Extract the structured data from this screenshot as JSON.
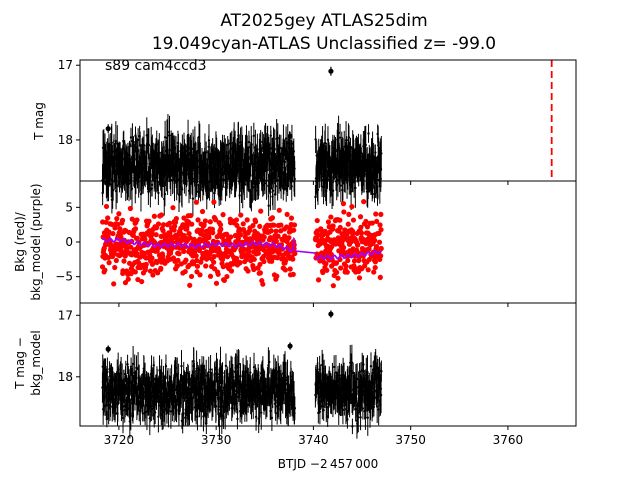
{
  "title": {
    "line1": "AT2025gey  ATLAS25dim",
    "line2": "19.049cyan-ATLAS Unclassified z= -99.0"
  },
  "chart_data": [
    {
      "type": "scatter",
      "panel": "top",
      "ylabel": "T mag",
      "annotation": "s89 cam4ccd3",
      "ylim": [
        18.55,
        16.93
      ],
      "yticks": [
        17,
        18
      ],
      "y_inverted": true,
      "errorbars": true,
      "series": [
        {
          "color": "#000000",
          "segments": [
            [
              3718.3,
              3738.1
            ],
            [
              3740.2,
              3747.0
            ]
          ],
          "center": 18.35,
          "spread": 0.18,
          "outliers": [
            [
              3741.8,
              17.08
            ],
            [
              3737.6,
              17.95
            ],
            [
              3718.9,
              17.85
            ]
          ]
        }
      ],
      "vline": {
        "x": 3764.5,
        "color": "#ff0000",
        "style": "dashed"
      }
    },
    {
      "type": "scatter",
      "panel": "middle",
      "ylabel_line1": "Bkg (red)/",
      "ylabel_line2": "bkg_model (purple)",
      "ylim": [
        -8.8,
        8.8
      ],
      "yticks": [
        -5,
        0,
        5
      ],
      "series": [
        {
          "name": "Bkg",
          "color": "#ff0000",
          "segments": [
            [
              3718.3,
              3738.1
            ],
            [
              3740.2,
              3747.0
            ]
          ],
          "center": -0.5,
          "spread": 2.2
        },
        {
          "name": "bkg_model",
          "color": "#a000ff",
          "segments": [
            [
              3718.3,
              3738.1
            ],
            [
              3740.2,
              3747.0
            ]
          ],
          "x": [
            3718.3,
            3720,
            3722,
            3724,
            3726,
            3728,
            3730,
            3732,
            3734,
            3736,
            3738,
            3740,
            3742,
            3744,
            3746,
            3747
          ],
          "values": [
            0.2,
            0.3,
            -0.2,
            -0.5,
            -0.4,
            -0.6,
            -0.3,
            -0.5,
            -0.2,
            -0.4,
            -1.3,
            -1.6,
            -2.2,
            -2.0,
            -1.6,
            -1.4
          ]
        }
      ]
    },
    {
      "type": "scatter",
      "panel": "bottom",
      "ylabel_line1": "T mag −",
      "ylabel_line2": "bkg_model",
      "ylim": [
        18.8,
        16.8
      ],
      "yticks": [
        17,
        18
      ],
      "y_inverted": true,
      "errorbars": true,
      "series": [
        {
          "color": "#000000",
          "segments": [
            [
              3718.3,
              3738.1
            ],
            [
              3740.2,
              3747.0
            ]
          ],
          "center": 18.25,
          "spread": 0.2,
          "outliers": [
            [
              3741.8,
              16.98
            ],
            [
              3737.6,
              17.5
            ],
            [
              3718.9,
              17.55
            ]
          ]
        }
      ],
      "xlabel": "BTJD −2 457 000",
      "xlim": [
        3716,
        3767
      ],
      "xticks": [
        3720,
        3730,
        3740,
        3750,
        3760
      ]
    }
  ]
}
